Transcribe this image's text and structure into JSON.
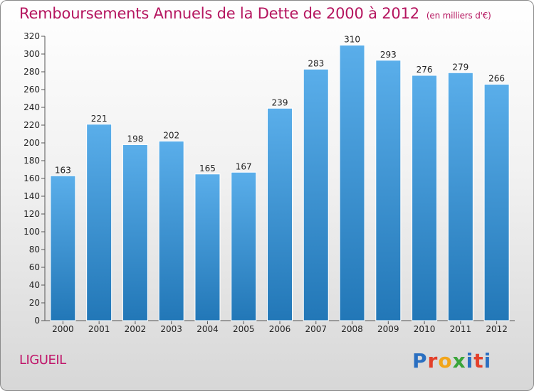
{
  "title": "Remboursements Annuels de la Dette de 2000 à 2012",
  "subtitle": "(en milliers d'€)",
  "place": "LIGUEIL",
  "logo": {
    "letters": [
      "P",
      "r",
      "o",
      "x",
      "i",
      "t",
      "i"
    ],
    "colors": [
      "#2a6fc1",
      "#e3402b",
      "#f2a51a",
      "#3aa53a",
      "#2a6fc1",
      "#e3402b",
      "#2a6fc1"
    ]
  },
  "colors": {
    "bar_top": "#5aaeea",
    "bar_bottom": "#2277b7",
    "text_accent": "#b5155f"
  },
  "chart_data": {
    "type": "bar",
    "categories": [
      "2000",
      "2001",
      "2002",
      "2003",
      "2004",
      "2005",
      "2006",
      "2007",
      "2008",
      "2009",
      "2010",
      "2011",
      "2012"
    ],
    "values": [
      163,
      221,
      198,
      202,
      165,
      167,
      239,
      283,
      310,
      293,
      276,
      279,
      266
    ],
    "title": "Remboursements Annuels de la Dette de 2000 à 2012",
    "xlabel": "",
    "ylabel": "",
    "ylim": [
      0,
      320
    ],
    "yticks": [
      0,
      20,
      40,
      60,
      80,
      100,
      120,
      140,
      160,
      180,
      200,
      220,
      240,
      260,
      280,
      300,
      320
    ],
    "grid": false,
    "data_labels": true
  }
}
